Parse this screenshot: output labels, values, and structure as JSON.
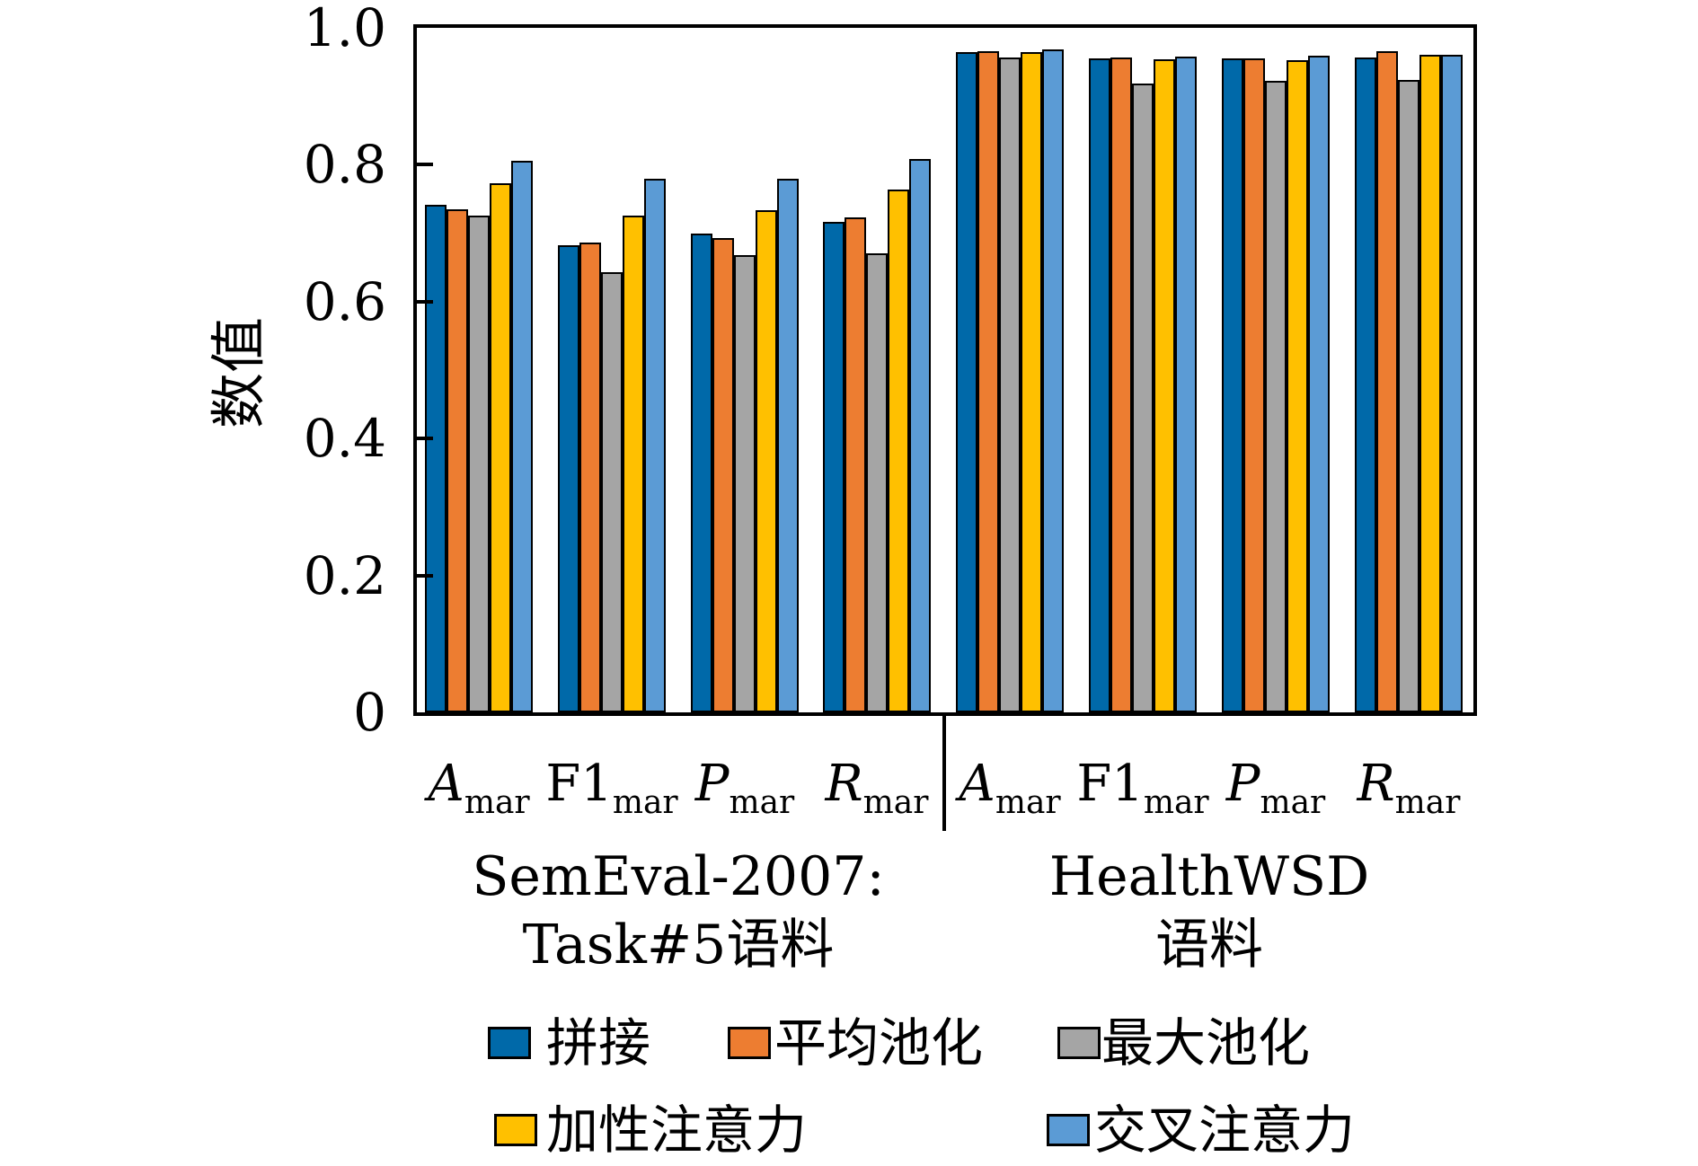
{
  "figure": {
    "background": "#ffffff"
  },
  "chart_data": {
    "type": "bar",
    "title": "",
    "ylabel": "数值",
    "xlabel": "",
    "ylim": [
      0,
      1.0
    ],
    "yticks": [
      0,
      0.2,
      0.4,
      0.6,
      0.8,
      1.0
    ],
    "ytick_labels": [
      "0",
      "0.2",
      "0.4",
      "0.6",
      "0.8",
      "1.0"
    ],
    "grid": false,
    "legend_position": "bottom",
    "bar_edge_color": "#000000",
    "categories": [
      {
        "base": "A",
        "sub": "mar",
        "italic": true,
        "group": 0
      },
      {
        "base": "F1",
        "sub": "mar",
        "italic": false,
        "group": 0
      },
      {
        "base": "P",
        "sub": "mar",
        "italic": true,
        "group": 0
      },
      {
        "base": "R",
        "sub": "mar",
        "italic": true,
        "group": 0
      },
      {
        "base": "A",
        "sub": "mar",
        "italic": true,
        "group": 1
      },
      {
        "base": "F1",
        "sub": "mar",
        "italic": false,
        "group": 1
      },
      {
        "base": "P",
        "sub": "mar",
        "italic": true,
        "group": 1
      },
      {
        "base": "R",
        "sub": "mar",
        "italic": true,
        "group": 1
      }
    ],
    "groups": [
      {
        "lines": [
          "SemEval-2007:",
          "Task#5语料"
        ]
      },
      {
        "lines": [
          "HealthWSD",
          "语料"
        ]
      }
    ],
    "series": [
      {
        "name": "拼接",
        "color": "#0069a9",
        "values": [
          0.741,
          0.682,
          0.7,
          0.716,
          0.965,
          0.955,
          0.956,
          0.957
        ]
      },
      {
        "name": "平均池化",
        "color": "#ed7d31",
        "values": [
          0.735,
          0.686,
          0.693,
          0.723,
          0.966,
          0.957,
          0.956,
          0.966
        ]
      },
      {
        "name": "最大池化",
        "color": "#a5a5a5",
        "values": [
          0.726,
          0.643,
          0.668,
          0.671,
          0.957,
          0.919,
          0.923,
          0.924
        ]
      },
      {
        "name": "加性注意力",
        "color": "#ffc000",
        "values": [
          0.773,
          0.726,
          0.734,
          0.764,
          0.965,
          0.954,
          0.953,
          0.96
        ]
      },
      {
        "name": "交叉注意力",
        "color": "#5b9bd5",
        "values": [
          0.806,
          0.78,
          0.78,
          0.809,
          0.968,
          0.958,
          0.959,
          0.96
        ]
      }
    ]
  }
}
